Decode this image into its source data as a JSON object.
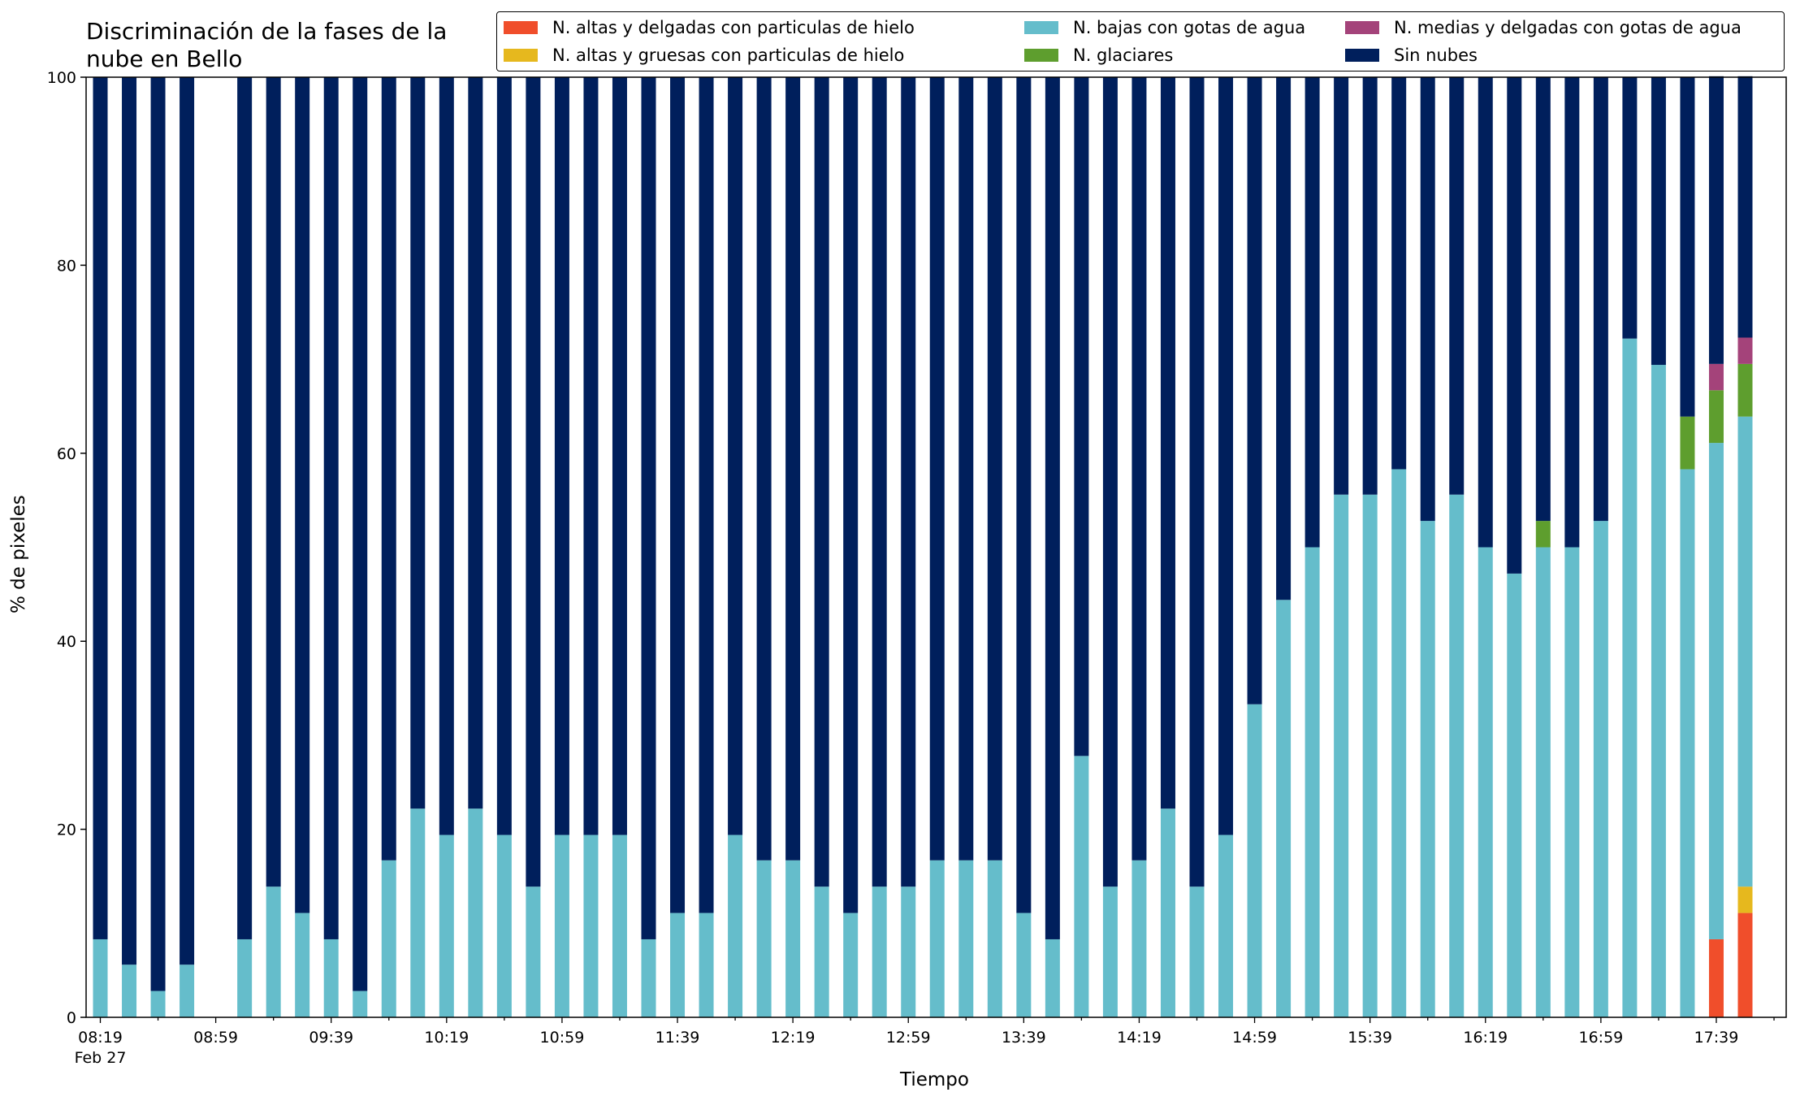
{
  "chart_data": {
    "type": "bar",
    "stacked": true,
    "title": "Discriminación de la fases de la nube en Bello",
    "title_lines": [
      "Discriminación de la fases de la",
      "nube en Bello"
    ],
    "xlabel": "Tiempo",
    "ylabel": "% de pixeles",
    "ylim": [
      0,
      100
    ],
    "yticks": [
      "0",
      "20",
      "40",
      "60",
      "80",
      "100"
    ],
    "xtick_labels": [
      "08:19",
      "08:59",
      "09:39",
      "10:19",
      "10:59",
      "11:39",
      "12:19",
      "12:59",
      "13:39",
      "14:19",
      "14:59",
      "15:39",
      "16:19",
      "16:59",
      "17:39"
    ],
    "xtick_sublabel": "Feb 27",
    "grid": false,
    "legend_position": "top",
    "x": [
      "08:19",
      "08:29",
      "08:39",
      "08:49",
      "08:59",
      "09:09",
      "09:19",
      "09:29",
      "09:39",
      "09:49",
      "09:59",
      "10:09",
      "10:19",
      "10:29",
      "10:39",
      "10:49",
      "10:59",
      "11:09",
      "11:19",
      "11:29",
      "11:39",
      "11:49",
      "11:59",
      "12:09",
      "12:19",
      "12:29",
      "12:39",
      "12:49",
      "12:59",
      "13:09",
      "13:19",
      "13:29",
      "13:39",
      "13:49",
      "13:59",
      "14:09",
      "14:19",
      "14:29",
      "14:39",
      "14:49",
      "14:59",
      "15:09",
      "15:19",
      "15:29",
      "15:39",
      "15:49",
      "15:59",
      "16:09",
      "16:19",
      "16:29",
      "16:39",
      "16:49",
      "16:59",
      "17:09",
      "17:19",
      "17:29",
      "17:39",
      "17:49"
    ],
    "series": [
      {
        "name": "N. altas y delgadas con particulas de hielo",
        "color": "#f04e2b",
        "values": [
          0,
          0,
          0,
          0,
          null,
          0,
          0,
          0,
          0,
          0,
          0,
          0,
          0,
          0,
          0,
          0,
          0,
          0,
          0,
          0,
          0,
          0,
          0,
          0,
          0,
          0,
          0,
          0,
          0,
          0,
          0,
          0,
          0,
          0,
          0,
          0,
          0,
          0,
          0,
          0,
          0,
          0,
          0,
          0,
          0,
          0,
          0,
          0,
          0,
          0,
          0,
          0,
          0,
          0,
          0,
          0,
          8.3,
          11.1
        ]
      },
      {
        "name": "N. altas y gruesas con particulas de hielo",
        "color": "#e6b81e",
        "values": [
          0,
          0,
          0,
          0,
          null,
          0,
          0,
          0,
          0,
          0,
          0,
          0,
          0,
          0,
          0,
          0,
          0,
          0,
          0,
          0,
          0,
          0,
          0,
          0,
          0,
          0,
          0,
          0,
          0,
          0,
          0,
          0,
          0,
          0,
          0,
          0,
          0,
          0,
          0,
          0,
          0,
          0,
          0,
          0,
          0,
          0,
          0,
          0,
          0,
          0,
          0,
          0,
          0,
          0,
          0,
          0,
          0,
          2.8
        ]
      },
      {
        "name": "N. bajas con gotas de agua",
        "color": "#65bdcb",
        "values": [
          8.3,
          5.6,
          2.8,
          5.6,
          null,
          8.3,
          13.9,
          11.1,
          8.3,
          2.8,
          16.7,
          22.2,
          19.4,
          22.2,
          19.4,
          13.9,
          19.4,
          19.4,
          19.4,
          8.3,
          11.1,
          11.1,
          19.4,
          16.7,
          16.7,
          13.9,
          11.1,
          13.9,
          13.9,
          16.7,
          16.7,
          16.7,
          11.1,
          8.3,
          27.8,
          13.9,
          16.7,
          22.2,
          13.9,
          19.4,
          33.3,
          44.4,
          50.0,
          55.6,
          55.6,
          58.3,
          52.8,
          55.6,
          50.0,
          47.2,
          50.0,
          50.0,
          52.8,
          72.2,
          69.4,
          58.3,
          52.8,
          50.0
        ]
      },
      {
        "name": "N. glaciares",
        "color": "#5e9e2e",
        "values": [
          0,
          0,
          0,
          0,
          null,
          0,
          0,
          0,
          0,
          0,
          0,
          0,
          0,
          0,
          0,
          0,
          0,
          0,
          0,
          0,
          0,
          0,
          0,
          0,
          0,
          0,
          0,
          0,
          0,
          0,
          0,
          0,
          0,
          0,
          0,
          0,
          0,
          0,
          0,
          0,
          0,
          0,
          0,
          0,
          0,
          0,
          0,
          0,
          0,
          0,
          2.8,
          0,
          0,
          0,
          0,
          5.6,
          5.6,
          5.6
        ]
      },
      {
        "name": "N. medias y delgadas con gotas de agua",
        "color": "#a4437a",
        "values": [
          0,
          0,
          0,
          0,
          null,
          0,
          0,
          0,
          0,
          0,
          0,
          0,
          0,
          0,
          0,
          0,
          0,
          0,
          0,
          0,
          0,
          0,
          0,
          0,
          0,
          0,
          0,
          0,
          0,
          0,
          0,
          0,
          0,
          0,
          0,
          0,
          0,
          0,
          0,
          0,
          0,
          0,
          0,
          0,
          0,
          0,
          0,
          0,
          0,
          0,
          0,
          0,
          0,
          0,
          0,
          0,
          2.8,
          2.8
        ]
      },
      {
        "name": "Sin nubes",
        "color": "#001f5c",
        "values": [
          91.7,
          94.4,
          97.2,
          94.4,
          null,
          91.7,
          86.1,
          88.9,
          91.7,
          97.2,
          83.3,
          77.8,
          80.6,
          77.8,
          80.6,
          86.1,
          80.6,
          80.6,
          80.6,
          91.7,
          88.9,
          88.9,
          80.6,
          83.3,
          83.3,
          86.1,
          88.9,
          86.1,
          86.1,
          83.3,
          83.3,
          83.3,
          88.9,
          91.7,
          72.2,
          86.1,
          83.3,
          77.8,
          86.1,
          80.6,
          66.7,
          55.6,
          50.0,
          44.4,
          44.4,
          41.7,
          47.2,
          44.4,
          50.0,
          52.8,
          47.2,
          50.0,
          47.2,
          27.8,
          30.6,
          36.1,
          30.6,
          27.8
        ]
      }
    ]
  }
}
